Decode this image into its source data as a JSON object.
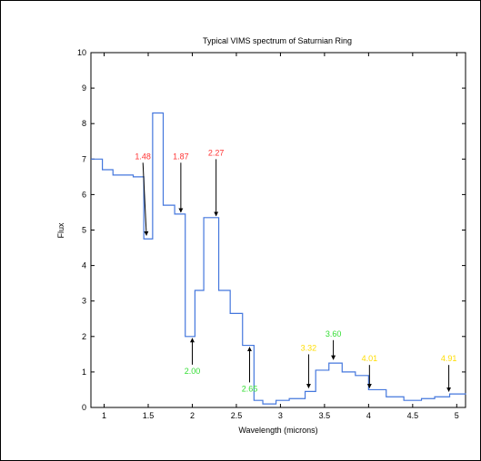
{
  "chart_data": {
    "type": "line",
    "title": "Typical VIMS spectrum of Saturnian Ring",
    "xlabel": "Wavelength (microns)",
    "ylabel": "Flux",
    "xlim": [
      0.85,
      5.1
    ],
    "ylim": [
      0,
      10
    ],
    "xticks": [
      1,
      1.5,
      2,
      2.5,
      3,
      3.5,
      4,
      4.5,
      5
    ],
    "yticks": [
      0,
      1,
      2,
      3,
      4,
      5,
      6,
      7,
      8,
      9,
      10
    ],
    "xtick_labels": [
      "1",
      "1.5",
      "2",
      "2.5",
      "3",
      "3.5",
      "4",
      "4.5",
      "5"
    ],
    "ytick_labels": [
      "0",
      "1",
      "2",
      "3",
      "4",
      "5",
      "6",
      "7",
      "8",
      "9",
      "10"
    ],
    "grid": false,
    "line_color": "#4477dd",
    "series": [
      {
        "step": true,
        "x": [
          0.85,
          0.98,
          1.1,
          1.33,
          1.45,
          1.55,
          1.67,
          1.8,
          1.92,
          2.03,
          2.13,
          2.3,
          2.43,
          2.57,
          2.7,
          2.8,
          2.95,
          3.1,
          3.28,
          3.4,
          3.55,
          3.7,
          3.85,
          4.0,
          4.2,
          4.4,
          4.6,
          4.75,
          4.92,
          5.1
        ],
        "y": [
          7.0,
          6.7,
          6.55,
          6.5,
          4.75,
          8.3,
          5.7,
          5.45,
          2.0,
          3.3,
          5.35,
          3.3,
          2.65,
          1.75,
          0.2,
          0.1,
          0.2,
          0.25,
          0.45,
          1.05,
          1.25,
          1.0,
          0.9,
          0.5,
          0.3,
          0.2,
          0.25,
          0.3,
          0.38,
          0.4
        ]
      }
    ],
    "annotations": [
      {
        "label": "1.48",
        "color": "#ff3333",
        "x": 1.48,
        "y": 4.8,
        "tx": 1.44,
        "ty": 7.0,
        "dir": "down"
      },
      {
        "label": "1.87",
        "color": "#ff3333",
        "x": 1.87,
        "y": 5.45,
        "tx": 1.87,
        "ty": 7.0,
        "dir": "down"
      },
      {
        "label": "2.27",
        "color": "#ff3333",
        "x": 2.27,
        "y": 5.35,
        "tx": 2.27,
        "ty": 7.1,
        "dir": "down"
      },
      {
        "label": "2.00",
        "color": "#33dd33",
        "x": 2.0,
        "y": 2.0,
        "tx": 2.0,
        "ty": 0.95,
        "dir": "up"
      },
      {
        "label": "2.65",
        "color": "#33dd33",
        "x": 2.65,
        "y": 1.75,
        "tx": 2.65,
        "ty": 0.45,
        "dir": "up"
      },
      {
        "label": "3.32",
        "color": "#ffdd00",
        "x": 3.32,
        "y": 0.5,
        "tx": 3.32,
        "ty": 1.6,
        "dir": "down"
      },
      {
        "label": "3.60",
        "color": "#33dd33",
        "x": 3.6,
        "y": 1.3,
        "tx": 3.6,
        "ty": 2.0,
        "dir": "down"
      },
      {
        "label": "4.01",
        "color": "#ffdd00",
        "x": 4.01,
        "y": 0.5,
        "tx": 4.01,
        "ty": 1.3,
        "dir": "down"
      },
      {
        "label": "4.91",
        "color": "#ffdd00",
        "x": 4.91,
        "y": 0.4,
        "tx": 4.91,
        "ty": 1.3,
        "dir": "down"
      }
    ]
  }
}
